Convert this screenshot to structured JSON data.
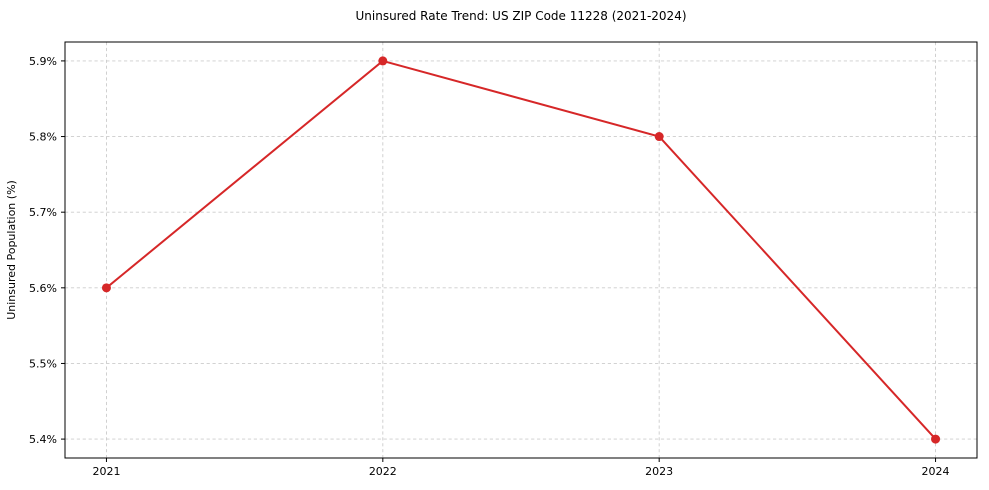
{
  "chart_data": {
    "type": "line",
    "title": "Uninsured Rate Trend: US ZIP Code 11228 (2021-2024)",
    "xlabel": "",
    "ylabel": "Uninsured Population (%)",
    "x": [
      2021,
      2022,
      2023,
      2024
    ],
    "y": [
      5.6,
      5.9,
      5.8,
      5.4
    ],
    "x_ticks": [
      2021,
      2022,
      2023,
      2024
    ],
    "x_tick_labels": [
      "2021",
      "2022",
      "2023",
      "2024"
    ],
    "y_ticks": [
      5.4,
      5.5,
      5.6,
      5.7,
      5.8,
      5.9
    ],
    "y_tick_labels": [
      "5.4%",
      "5.5%",
      "5.6%",
      "5.7%",
      "5.8%",
      "5.9%"
    ],
    "xlim": [
      2020.85,
      2024.15
    ],
    "ylim": [
      5.375,
      5.925
    ],
    "grid": true,
    "grid_style": "dashed",
    "grid_color": "#cccccc",
    "axis_color": "#000000",
    "line_color": "#d62728",
    "marker": "circle",
    "legend": "none"
  }
}
